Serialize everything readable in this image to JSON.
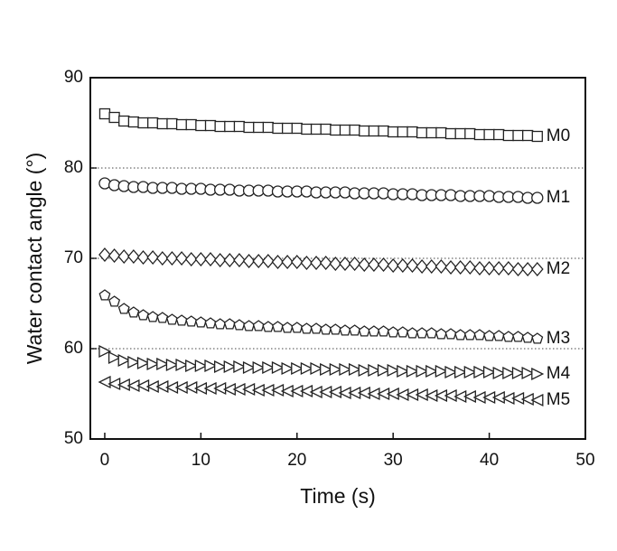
{
  "chart_data": {
    "type": "scatter",
    "xlabel": "Time (s)",
    "ylabel": "Water contact angle (°)",
    "x": [
      0,
      1,
      2,
      3,
      4,
      5,
      6,
      7,
      8,
      9,
      10,
      11,
      12,
      13,
      14,
      15,
      16,
      17,
      18,
      19,
      20,
      21,
      22,
      23,
      24,
      25,
      26,
      27,
      28,
      29,
      30,
      31,
      32,
      33,
      34,
      35,
      36,
      37,
      38,
      39,
      40,
      41,
      42,
      43,
      44,
      45
    ],
    "xlim": [
      -1.5,
      50
    ],
    "xticks": [
      0,
      10,
      20,
      30,
      40,
      50
    ],
    "ylim": [
      50,
      90
    ],
    "yticks": [
      50,
      60,
      70,
      80,
      90
    ],
    "grid": true,
    "series": [
      {
        "name": "M0",
        "marker": "square",
        "color": "#222222",
        "values": [
          86.0,
          85.6,
          85.2,
          85.1,
          85.0,
          85.0,
          84.9,
          84.9,
          84.8,
          84.8,
          84.7,
          84.7,
          84.6,
          84.6,
          84.6,
          84.5,
          84.5,
          84.5,
          84.4,
          84.4,
          84.4,
          84.3,
          84.3,
          84.3,
          84.2,
          84.2,
          84.2,
          84.1,
          84.1,
          84.1,
          84.0,
          84.0,
          84.0,
          83.9,
          83.9,
          83.9,
          83.8,
          83.8,
          83.8,
          83.7,
          83.7,
          83.7,
          83.6,
          83.6,
          83.6,
          83.5
        ]
      },
      {
        "name": "M1",
        "marker": "circle",
        "color": "#222222",
        "values": [
          78.3,
          78.1,
          78.0,
          77.9,
          77.9,
          77.8,
          77.8,
          77.8,
          77.7,
          77.7,
          77.7,
          77.6,
          77.6,
          77.6,
          77.5,
          77.5,
          77.5,
          77.5,
          77.4,
          77.4,
          77.4,
          77.4,
          77.3,
          77.3,
          77.3,
          77.3,
          77.2,
          77.2,
          77.2,
          77.2,
          77.1,
          77.1,
          77.1,
          77.0,
          77.0,
          77.0,
          77.0,
          76.9,
          76.9,
          76.9,
          76.9,
          76.8,
          76.8,
          76.8,
          76.7,
          76.7
        ]
      },
      {
        "name": "M2",
        "marker": "diamond",
        "color": "#222222",
        "values": [
          70.4,
          70.3,
          70.2,
          70.2,
          70.1,
          70.1,
          70.0,
          70.0,
          70.0,
          69.9,
          69.9,
          69.9,
          69.8,
          69.8,
          69.8,
          69.7,
          69.7,
          69.7,
          69.6,
          69.6,
          69.6,
          69.5,
          69.5,
          69.5,
          69.4,
          69.4,
          69.4,
          69.3,
          69.3,
          69.3,
          69.2,
          69.2,
          69.2,
          69.1,
          69.1,
          69.1,
          69.0,
          69.0,
          69.0,
          68.9,
          68.9,
          68.9,
          68.9,
          68.8,
          68.8,
          68.8
        ]
      },
      {
        "name": "M3",
        "marker": "pentagon",
        "color": "#222222",
        "values": [
          65.9,
          65.2,
          64.4,
          64.0,
          63.7,
          63.5,
          63.4,
          63.2,
          63.1,
          63.0,
          62.9,
          62.8,
          62.7,
          62.7,
          62.6,
          62.5,
          62.5,
          62.4,
          62.4,
          62.3,
          62.3,
          62.2,
          62.2,
          62.1,
          62.1,
          62.0,
          62.0,
          61.9,
          61.9,
          61.9,
          61.8,
          61.8,
          61.7,
          61.7,
          61.7,
          61.6,
          61.6,
          61.5,
          61.5,
          61.5,
          61.4,
          61.4,
          61.3,
          61.3,
          61.2,
          61.1
        ]
      },
      {
        "name": "M4",
        "marker": "triangle-right",
        "color": "#222222",
        "values": [
          59.7,
          59.0,
          58.7,
          58.5,
          58.4,
          58.3,
          58.3,
          58.2,
          58.2,
          58.1,
          58.1,
          58.1,
          58.0,
          58.0,
          58.0,
          57.9,
          57.9,
          57.9,
          57.9,
          57.8,
          57.8,
          57.8,
          57.8,
          57.7,
          57.7,
          57.7,
          57.7,
          57.6,
          57.6,
          57.6,
          57.6,
          57.5,
          57.5,
          57.5,
          57.5,
          57.5,
          57.4,
          57.4,
          57.4,
          57.4,
          57.4,
          57.3,
          57.3,
          57.3,
          57.3,
          57.2
        ]
      },
      {
        "name": "M5",
        "marker": "triangle-left",
        "color": "#222222",
        "values": [
          56.3,
          56.1,
          56.0,
          55.9,
          55.9,
          55.8,
          55.8,
          55.7,
          55.7,
          55.7,
          55.6,
          55.6,
          55.6,
          55.5,
          55.5,
          55.5,
          55.4,
          55.4,
          55.4,
          55.3,
          55.3,
          55.3,
          55.2,
          55.2,
          55.2,
          55.1,
          55.1,
          55.1,
          55.0,
          55.0,
          55.0,
          54.9,
          54.9,
          54.9,
          54.8,
          54.8,
          54.8,
          54.7,
          54.7,
          54.6,
          54.6,
          54.6,
          54.5,
          54.5,
          54.4,
          54.3
        ]
      }
    ]
  }
}
